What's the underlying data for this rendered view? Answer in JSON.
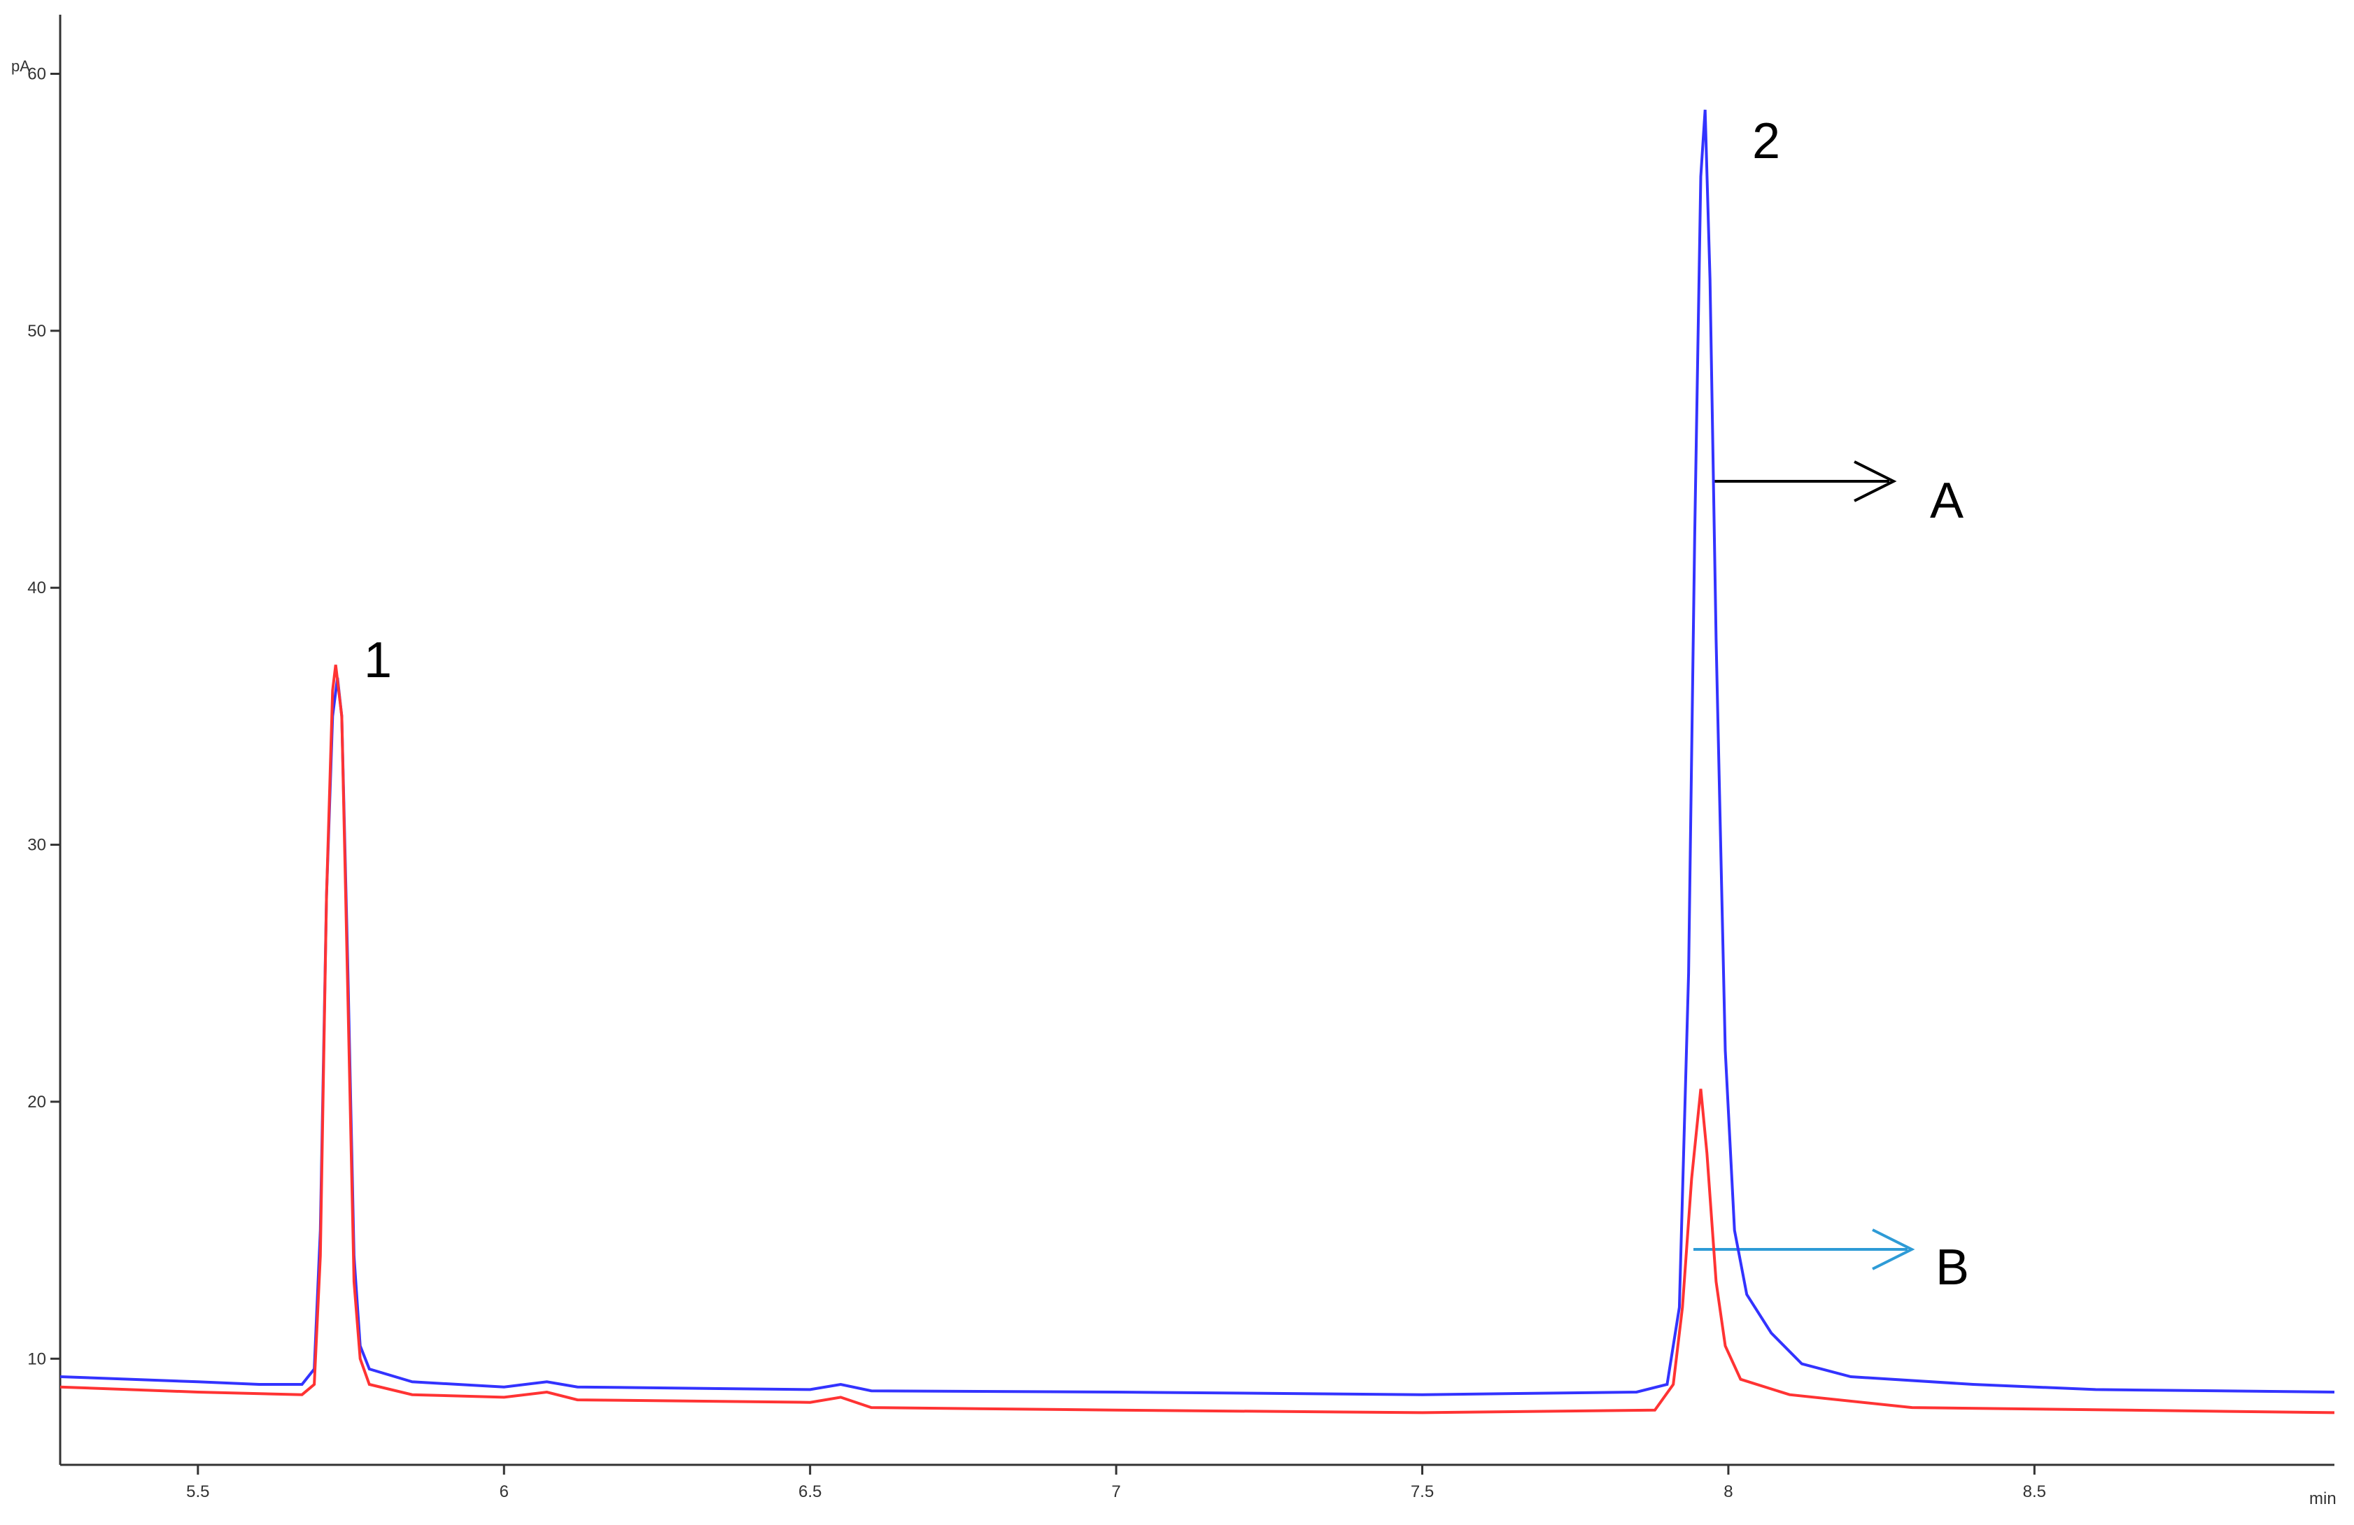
{
  "chart_data": {
    "type": "line",
    "y_label": "pA",
    "x_label": "min",
    "annotations": [
      "1",
      "2"
    ],
    "xlim": [
      5.275,
      8.99
    ],
    "ylim": [
      5.87,
      62.3
    ],
    "xticks": [
      5.5,
      6,
      6.5,
      7,
      7.5,
      8,
      8.5
    ],
    "yticks": [
      10,
      20,
      30,
      40,
      50,
      60
    ],
    "series": [
      {
        "name": "A",
        "color": "#3333ff",
        "x": [
          5.275,
          5.5,
          5.6,
          5.67,
          5.69,
          5.7,
          5.71,
          5.72,
          5.728,
          5.735,
          5.745,
          5.755,
          5.765,
          5.78,
          5.85,
          6.0,
          6.07,
          6.12,
          6.5,
          6.55,
          6.6,
          7.0,
          7.5,
          7.85,
          7.9,
          7.92,
          7.935,
          7.945,
          7.955,
          7.962,
          7.97,
          7.98,
          7.995,
          8.01,
          8.03,
          8.07,
          8.12,
          8.2,
          8.4,
          8.6,
          8.99
        ],
        "values": [
          9.3,
          9.1,
          9.0,
          9.0,
          9.6,
          15,
          28,
          35,
          36.5,
          35,
          25,
          14,
          10.5,
          9.6,
          9.1,
          8.9,
          9.1,
          8.9,
          8.8,
          9.0,
          8.75,
          8.7,
          8.6,
          8.7,
          9.0,
          12,
          25,
          42,
          56,
          58.6,
          52,
          38,
          22,
          15,
          12.5,
          11,
          9.8,
          9.3,
          9.0,
          8.8,
          8.7
        ]
      },
      {
        "name": "B",
        "color": "#ff3333",
        "x": [
          5.275,
          5.5,
          5.67,
          5.69,
          5.7,
          5.71,
          5.72,
          5.725,
          5.735,
          5.745,
          5.755,
          5.765,
          5.78,
          5.85,
          6.0,
          6.07,
          6.12,
          6.5,
          6.55,
          6.6,
          7.0,
          7.5,
          7.88,
          7.91,
          7.925,
          7.94,
          7.955,
          7.965,
          7.98,
          7.995,
          8.02,
          8.1,
          8.3,
          8.99
        ],
        "values": [
          8.9,
          8.7,
          8.6,
          9.0,
          14,
          28,
          36,
          37,
          35,
          24,
          13,
          10,
          9.0,
          8.6,
          8.5,
          8.7,
          8.4,
          8.3,
          8.5,
          8.1,
          8.0,
          7.9,
          8.0,
          9,
          12,
          17,
          20.5,
          18,
          13,
          10.5,
          9.2,
          8.6,
          8.1,
          7.9
        ]
      }
    ]
  }
}
